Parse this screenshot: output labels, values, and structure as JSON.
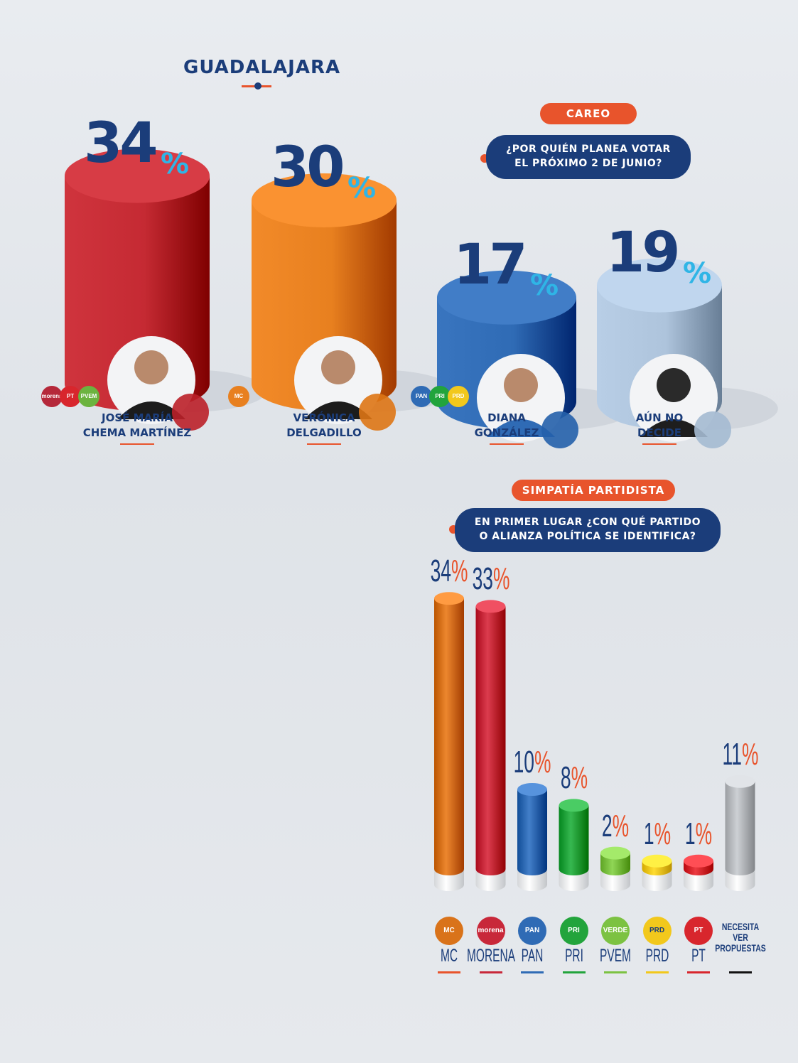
{
  "title": "GUADALAJARA",
  "careo": {
    "tag": "CAREO",
    "question_line1": "¿POR QUIÉN PLANEA VOTAR",
    "question_line2": "EL PRÓXIMO 2 DE JUNIO?"
  },
  "simpatia": {
    "tag": "SIMPATÍA PARTIDISTA",
    "question_line1": "EN PRIMER LUGAR ¿CON QUÉ PARTIDO",
    "question_line2": "O ALIANZA POLÍTICA SE IDENTIFICA?"
  },
  "colors": {
    "navy": "#1b3d7a",
    "accent": "#e8542c",
    "sign_blue": "#2fb5e6"
  },
  "chart_data": [
    {
      "type": "bar",
      "categories": [
        "JOSÉ MARÍA CHEMA MARTÍNEZ",
        "VERÓNICA DELGADILLO",
        "DIANA GONZÁLEZ",
        "AÚN NO DECIDE"
      ],
      "values": [
        34,
        30,
        17,
        19
      ],
      "value_labels": [
        "34",
        "30",
        "17",
        "19"
      ],
      "unit": "%",
      "name_lines": [
        [
          "JOSÉ MARÍA",
          "CHEMA MARTÍNEZ"
        ],
        [
          "VERÓNICA",
          "DELGADILLO"
        ],
        [
          "DIANA",
          "GONZÁLEZ"
        ],
        [
          "AÚN NO",
          "DECIDE"
        ]
      ],
      "bar_colors": [
        "#c52a33",
        "#e8801f",
        "#2f6bb5",
        "#aec4dc"
      ],
      "party_badges": [
        [
          "morena",
          "PT",
          "PVEM"
        ],
        [
          "MC"
        ],
        [
          "PAN",
          "PRI",
          "PRD"
        ],
        []
      ]
    },
    {
      "type": "bar",
      "categories": [
        "MC",
        "MORENA",
        "PAN",
        "PRI",
        "PVEM",
        "PRD",
        "PT",
        "NECESITA VER PROPUESTAS"
      ],
      "values": [
        34,
        33,
        10,
        8,
        2,
        1,
        1,
        11
      ],
      "value_labels": [
        "34",
        "33",
        "10",
        "8",
        "2",
        "1",
        "1",
        "11"
      ],
      "unit": "%",
      "label_lines": [
        [
          "MC"
        ],
        [
          "MORENA"
        ],
        [
          "PAN"
        ],
        [
          "PRI"
        ],
        [
          "PVEM"
        ],
        [
          "PRD"
        ],
        [
          "PT"
        ],
        [
          "NECESITA",
          "VER",
          "PROPUESTAS"
        ]
      ],
      "bar_colors": [
        "#d9731a",
        "#c8283a",
        "#2f6bb5",
        "#22a43c",
        "#7cc242",
        "#f2c81c",
        "#d8262d",
        "#b9bcc0"
      ],
      "rule_colors": [
        "#e8542c",
        "#c8283a",
        "#2f6bb5",
        "#22a43c",
        "#7cc242",
        "#f2c81c",
        "#d8262d",
        "#111111"
      ],
      "logos": [
        "MC",
        "morena",
        "PAN",
        "PRI",
        "VERDE",
        "PRD",
        "PT",
        ""
      ]
    }
  ]
}
